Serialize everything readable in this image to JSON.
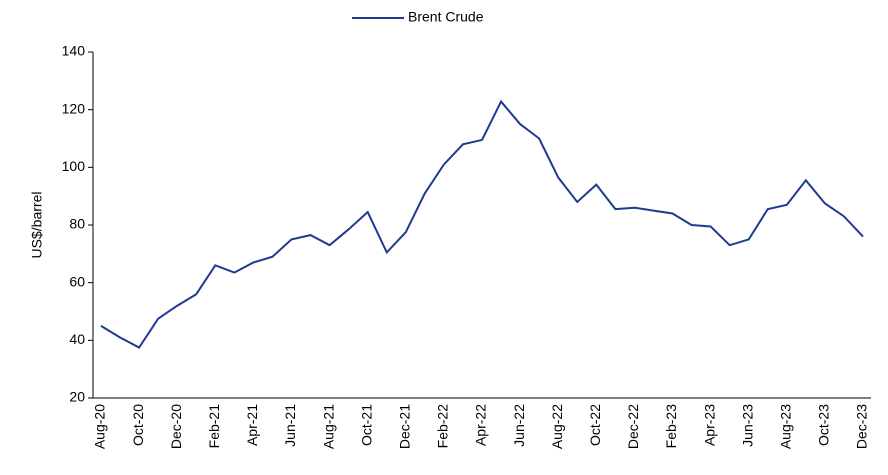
{
  "chart_data": {
    "type": "line",
    "y_label": "US$/barrel",
    "categories": [
      "Aug-20",
      null,
      "Oct-20",
      null,
      "Dec-20",
      null,
      "Feb-21",
      null,
      "Apr-21",
      null,
      "Jun-21",
      null,
      "Aug-21",
      null,
      "Oct-21",
      null,
      "Dec-21",
      null,
      "Feb-22",
      null,
      "Apr-22",
      null,
      "Jun-22",
      null,
      "Aug-22",
      null,
      "Oct-22",
      null,
      "Dec-22",
      null,
      "Feb-23",
      null,
      "Apr-23",
      null,
      "Jun-23",
      null,
      "Aug-23",
      null,
      "Oct-23",
      null,
      "Dec-23"
    ],
    "series": [
      {
        "name": "Brent Crude",
        "color": "#1f3a8f",
        "values": [
          45,
          41,
          37.5,
          47.5,
          52,
          56,
          66,
          63.5,
          67,
          69,
          75,
          76.5,
          73,
          78.5,
          84.5,
          70.5,
          77.5,
          91,
          101,
          108,
          109.5,
          122.8,
          115,
          110,
          96.5,
          88,
          94,
          85.5,
          86,
          85,
          84,
          80,
          79.5,
          73,
          75,
          85.5,
          87,
          95.5,
          87.5,
          83,
          76
        ]
      }
    ],
    "ylim": [
      20,
      140
    ],
    "yticks": [
      20,
      40,
      60,
      80,
      100,
      120,
      140
    ],
    "legend": "top",
    "grid": false
  }
}
